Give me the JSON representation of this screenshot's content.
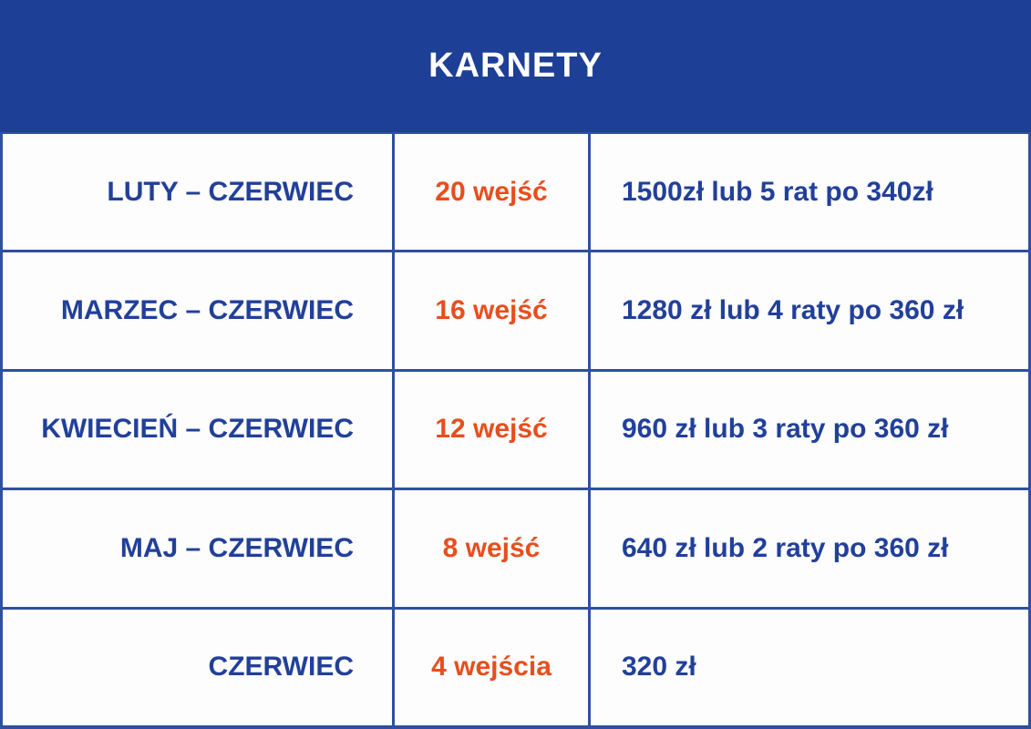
{
  "header": {
    "title": "KARNETY"
  },
  "colors": {
    "header_bg": "#1E3F96",
    "text_blue": "#21409A",
    "accent_orange": "#E84E1D",
    "border_blue": "#2F4FA0",
    "cell_bg": "#FDFDFE",
    "header_text": "#FFFFFF"
  },
  "table": {
    "columns": [
      "period",
      "entries",
      "price"
    ],
    "rows": [
      {
        "period": "LUTY – CZERWIEC",
        "entries": "20 wejść",
        "price": "1500zł lub 5 rat po 340zł"
      },
      {
        "period": "MARZEC – CZERWIEC",
        "entries": "16 wejść",
        "price": "1280 zł lub 4 raty po 360 zł"
      },
      {
        "period": "KWIECIEŃ – CZERWIEC",
        "entries": "12 wejść",
        "price": "960 zł lub 3 raty po 360 zł"
      },
      {
        "period": "MAJ – CZERWIEC",
        "entries": "8 wejść",
        "price": "640 zł lub 2 raty po 360 zł"
      },
      {
        "period": "CZERWIEC",
        "entries": "4 wejścia",
        "price": "320 zł"
      }
    ]
  }
}
